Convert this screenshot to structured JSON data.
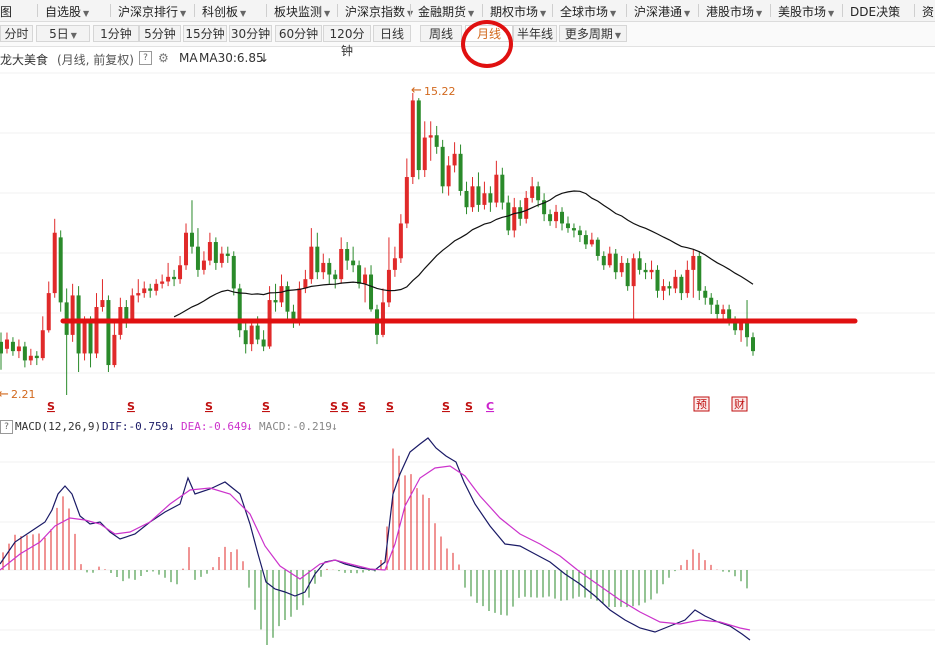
{
  "topnav": {
    "items": [
      {
        "label": "图",
        "caret": false
      },
      {
        "label": "自选股",
        "caret": true
      },
      {
        "label": "沪深京排行",
        "caret": true
      },
      {
        "label": "科创板",
        "caret": true
      },
      {
        "label": "板块监测",
        "caret": true
      },
      {
        "label": "沪深京指数",
        "caret": true
      },
      {
        "label": "金融期货",
        "caret": true
      },
      {
        "label": "期权市场",
        "caret": true
      },
      {
        "label": "全球市场",
        "caret": true
      },
      {
        "label": "沪深港通",
        "caret": true
      },
      {
        "label": "港股市场",
        "caret": true
      },
      {
        "label": "美股市场",
        "caret": true
      },
      {
        "label": "DDE决策",
        "caret": false
      },
      {
        "label": "资",
        "caret": false
      }
    ]
  },
  "periods": {
    "items": [
      "分时",
      "5日",
      "1分钟",
      "5分钟",
      "15分钟",
      "30分钟",
      "60分钟",
      "120分钟",
      "日线",
      "周线",
      "月线",
      "半年线",
      "更多周期"
    ],
    "active": "月线"
  },
  "info": {
    "stock_name": "龙大美食",
    "mode": "(月线, 前复权)",
    "help": "?",
    "ma_label": "MA",
    "ma_value": "MA30:6.85"
  },
  "chart_labels": {
    "high": "15.22",
    "low": "2.21"
  },
  "markers": {
    "s_symbol": "S",
    "c_symbol": "C",
    "preview": "预",
    "finance": "财"
  },
  "macd": {
    "params": "MACD(12,26,9)",
    "dif": "DIF:-0.759",
    "dea": "DEA:-0.649",
    "macd": "MACD:-0.219"
  },
  "colors": {
    "up": "#e02a2a",
    "down": "#2a8a2a",
    "ma": "#111111",
    "dif": "#1a1a66",
    "dea": "#cc33cc",
    "annotation": "#e01010",
    "highlight": "#d2691e"
  },
  "chart_data": {
    "type": "candlestick",
    "y_marked": {
      "high": 15.22,
      "low": 2.21
    },
    "ma_series_name": "MA30",
    "last_ma30": 6.85,
    "indicator": {
      "name": "MACD",
      "params": [
        12,
        26,
        9
      ],
      "dif": -0.759,
      "dea": -0.649,
      "macd": -0.219
    }
  }
}
